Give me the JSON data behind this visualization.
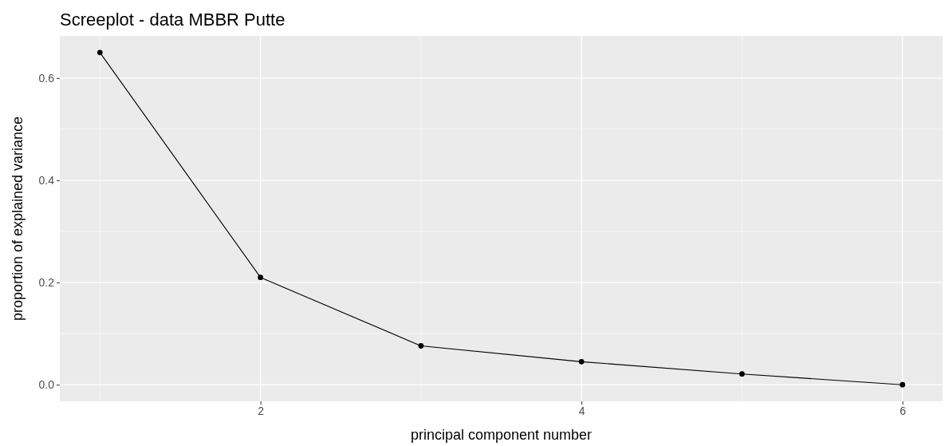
{
  "chart_data": {
    "type": "line",
    "title": "Screeplot - data MBBR Putte",
    "xlabel": "principal component number",
    "ylabel": "proportion of explained variance",
    "x": [
      1,
      2,
      3,
      4,
      5,
      6
    ],
    "series": [
      {
        "color": "#000000",
        "values": [
          0.65,
          0.21,
          0.076,
          0.045,
          0.021,
          0.0
        ]
      }
    ],
    "xlim": [
      0.75,
      6.25
    ],
    "xticks": [
      2,
      4,
      6
    ],
    "ylim": [
      -0.0325,
      0.6825
    ],
    "yticks": [
      {
        "value": 0,
        "label": "0.0"
      },
      {
        "value": 0.2,
        "label": "0.2"
      },
      {
        "value": 0.4,
        "label": "0.4"
      },
      {
        "value": 0.6,
        "label": "0.6"
      }
    ],
    "grid": true,
    "marker": "circle",
    "line_style": "solid"
  }
}
